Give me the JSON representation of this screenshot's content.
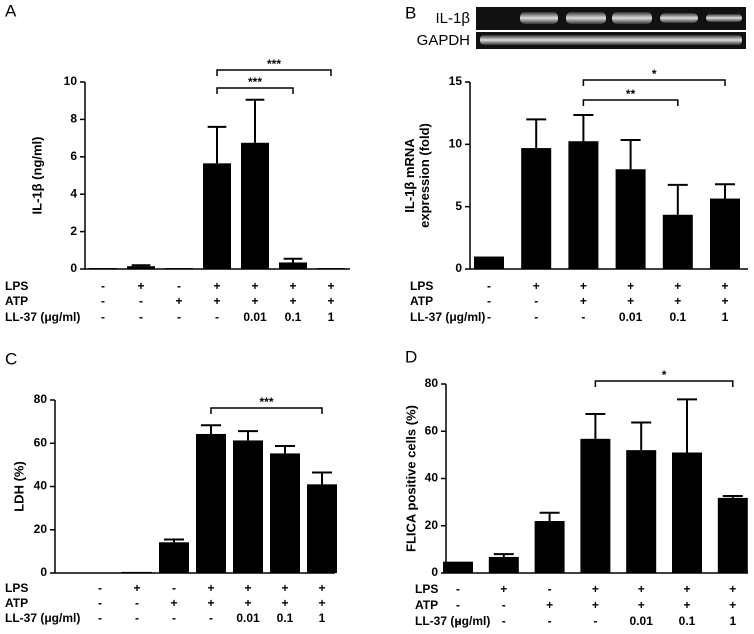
{
  "chart_data": [
    {
      "type": "bar",
      "panel": "A",
      "ylabel": [
        "IL-1β (ng/ml)"
      ],
      "values": [
        0.05,
        0.15,
        0.05,
        5.65,
        6.75,
        0.35,
        0.05
      ],
      "errors": [
        null,
        0.05,
        null,
        1.95,
        2.3,
        0.2,
        null
      ],
      "ylim": [
        0,
        10
      ],
      "yticks": [
        0,
        2,
        4,
        6,
        8,
        10
      ],
      "color": "#000000",
      "rows": [
        {
          "label": "LPS",
          "cells": [
            "-",
            "+",
            "-",
            "+",
            "+",
            "+",
            "+"
          ]
        },
        {
          "label": "ATP",
          "cells": [
            "-",
            "-",
            "+",
            "+",
            "+",
            "+",
            "+"
          ]
        },
        {
          "label": "LL-37 (μg/ml)",
          "cells": [
            "-",
            "-",
            "-",
            "-",
            "0.01",
            "0.1",
            "1"
          ]
        }
      ],
      "brackets": [
        {
          "from": 3,
          "to": 6,
          "label": "***"
        },
        {
          "from": 3,
          "to": 5,
          "label": "***"
        }
      ]
    },
    {
      "type": "bar",
      "panel": "B",
      "ylabel": [
        "IL-1β mRNA",
        "expression (fold)"
      ],
      "gel_labels": [
        "IL-1β",
        "GAPDH"
      ],
      "values": [
        1.0,
        9.7,
        10.25,
        8.0,
        4.35,
        5.65
      ],
      "errors": [
        null,
        2.3,
        2.1,
        2.35,
        2.4,
        1.15
      ],
      "ylim": [
        0,
        15
      ],
      "yticks": [
        0,
        5,
        10,
        15
      ],
      "color": "#000000",
      "rows": [
        {
          "label": "LPS",
          "cells": [
            "-",
            "+",
            "+",
            "+",
            "+",
            "+"
          ]
        },
        {
          "label": "ATP",
          "cells": [
            "-",
            "-",
            "+",
            "+",
            "+",
            "+"
          ]
        },
        {
          "label": "LL-37 (μg/ml)",
          "cells": [
            "-",
            "-",
            "-",
            "0.01",
            "0.1",
            "1"
          ]
        }
      ],
      "brackets": [
        {
          "from": 2,
          "to": 5,
          "label": "*"
        },
        {
          "from": 2,
          "to": 4,
          "label": "**"
        }
      ]
    },
    {
      "type": "bar",
      "panel": "C",
      "ylabel": [
        "LDH (%)"
      ],
      "values": [
        0,
        0.5,
        14.2,
        64.3,
        61.3,
        55.3,
        41
      ],
      "errors": [
        null,
        null,
        1.3,
        4,
        4.3,
        3.4,
        5.5
      ],
      "ylim": [
        0,
        80
      ],
      "yticks": [
        0,
        20,
        40,
        60,
        80
      ],
      "color": "#000000",
      "rows": [
        {
          "label": "LPS",
          "cells": [
            "-",
            "+",
            "-",
            "+",
            "+",
            "+",
            "+"
          ]
        },
        {
          "label": "ATP",
          "cells": [
            "-",
            "-",
            "+",
            "+",
            "+",
            "+",
            "+"
          ]
        },
        {
          "label": "LL-37 (μg/ml)",
          "cells": [
            "-",
            "-",
            "-",
            "-",
            "0.01",
            "0.1",
            "1"
          ]
        }
      ],
      "brackets": [
        {
          "from": 3,
          "to": 6,
          "label": "***"
        }
      ]
    },
    {
      "type": "bar",
      "panel": "D",
      "ylabel": [
        "FLICA positive cells (%)"
      ],
      "values": [
        4.8,
        6.8,
        22,
        56.8,
        52,
        51,
        31.8
      ],
      "errors": [
        null,
        1.2,
        3.5,
        10.5,
        11.7,
        22.5,
        0.8
      ],
      "ylim": [
        0,
        80
      ],
      "yticks": [
        0,
        20,
        40,
        60,
        80
      ],
      "color": "#000000",
      "rows": [
        {
          "label": "LPS",
          "cells": [
            "-",
            "+",
            "-",
            "+",
            "+",
            "+",
            "+"
          ]
        },
        {
          "label": "ATP",
          "cells": [
            "-",
            "-",
            "+",
            "+",
            "+",
            "+",
            "+"
          ]
        },
        {
          "label": "LL-37 (μg/ml)",
          "cells": [
            "-",
            "-",
            "-",
            "-",
            "0.01",
            "0.1",
            "1"
          ]
        }
      ],
      "brackets": [
        {
          "from": 3,
          "to": 6,
          "label": "*"
        }
      ]
    }
  ]
}
